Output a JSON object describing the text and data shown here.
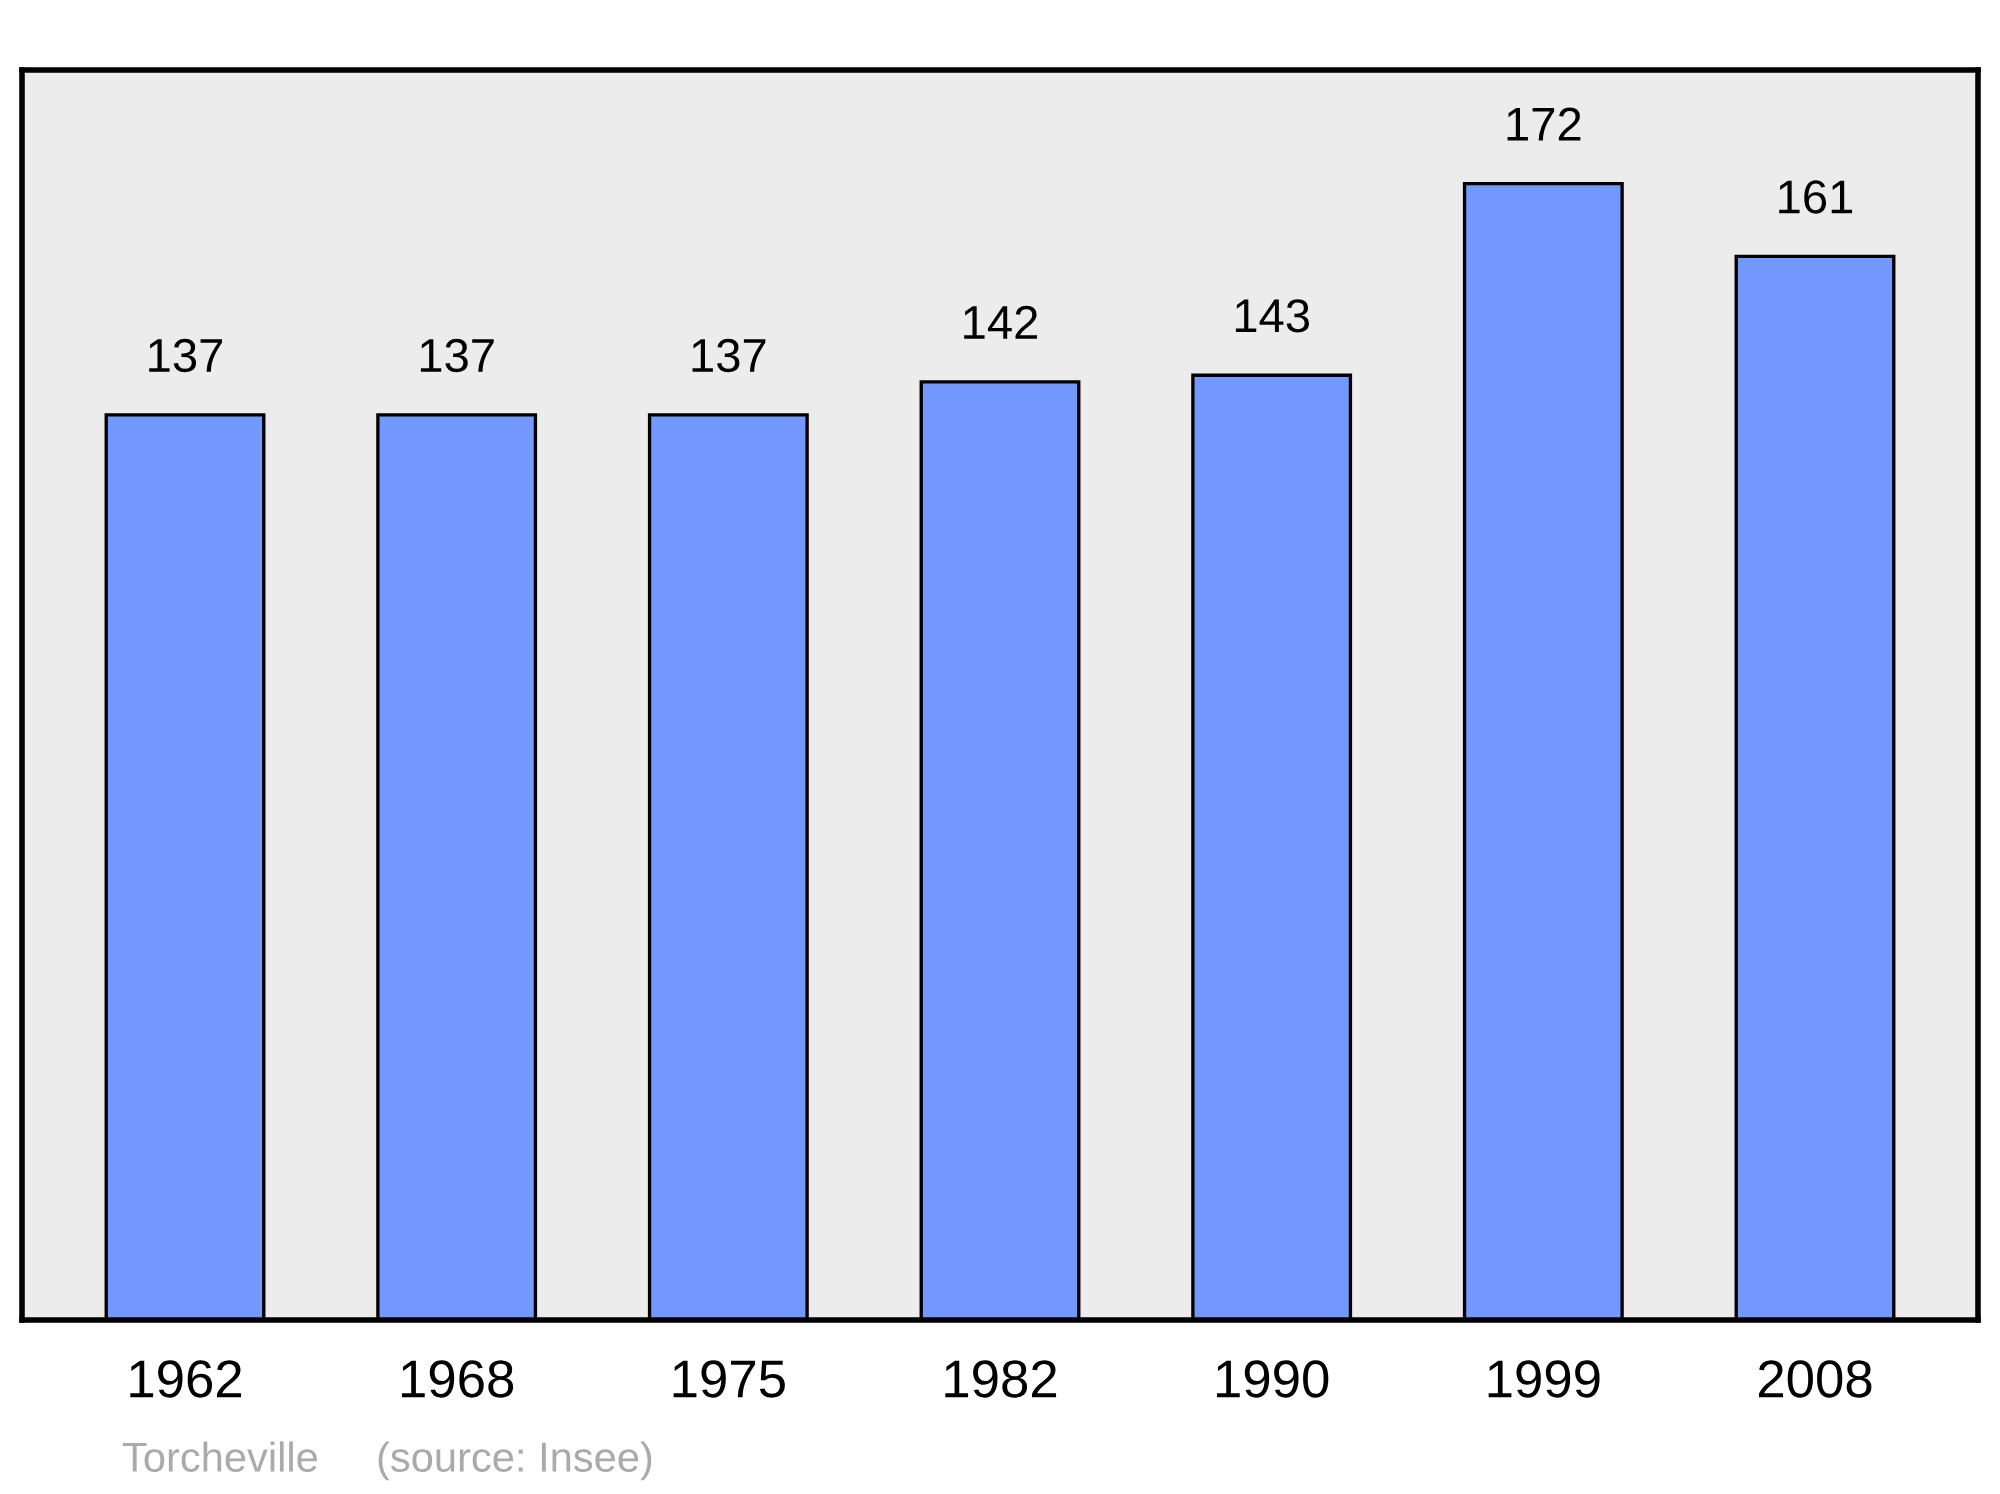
{
  "chart_data": {
    "type": "bar",
    "categories": [
      "1962",
      "1968",
      "1975",
      "1982",
      "1990",
      "1999",
      "2008"
    ],
    "values": [
      137,
      137,
      137,
      142,
      143,
      172,
      161
    ],
    "color": "#7399ff",
    "data_labels": true,
    "grid": false,
    "annotations": [
      "Torcheville",
      "(source: Insee)"
    ]
  }
}
